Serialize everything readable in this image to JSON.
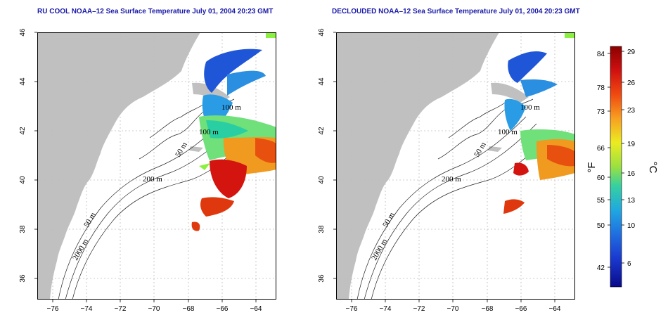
{
  "panels": [
    {
      "title": "RU COOL NOAA–12 Sea Surface Temperature July 01, 2004 20:23 GMT"
    },
    {
      "title": "DECLOUDED NOAA–12 Sea Surface Temperature July 01, 2004 20:23 GMT"
    }
  ],
  "axes": {
    "lat_ticks": [
      "36",
      "38",
      "40",
      "42",
      "44",
      "46"
    ],
    "lon_ticks": [
      "−76",
      "−74",
      "−72",
      "−70",
      "−68",
      "−66",
      "−64"
    ]
  },
  "contour_labels": {
    "c100a": "100 m",
    "c100b": "100 m",
    "c50a": "50 m",
    "c200": "200 m",
    "c50b": "50 m",
    "c2000": "2000 m"
  },
  "colorbar": {
    "f_label": "°F",
    "c_label": "°C",
    "f_ticks": [
      "84",
      "78",
      "73",
      "66",
      "60",
      "55",
      "50",
      "42"
    ],
    "c_ticks": [
      "29",
      "26",
      "23",
      "19",
      "16",
      "13",
      "10",
      "6"
    ],
    "colors": [
      "#8b0000",
      "#d01010",
      "#f04a10",
      "#f8a020",
      "#ecec20",
      "#9be040",
      "#36d0a0",
      "#20a8e0",
      "#1f6fe0",
      "#1a3ad0",
      "#0a0a8a"
    ]
  },
  "colors": {
    "land": "#c0c0c0",
    "title": "#1a1aa8",
    "grid": "#bdbdbd"
  }
}
